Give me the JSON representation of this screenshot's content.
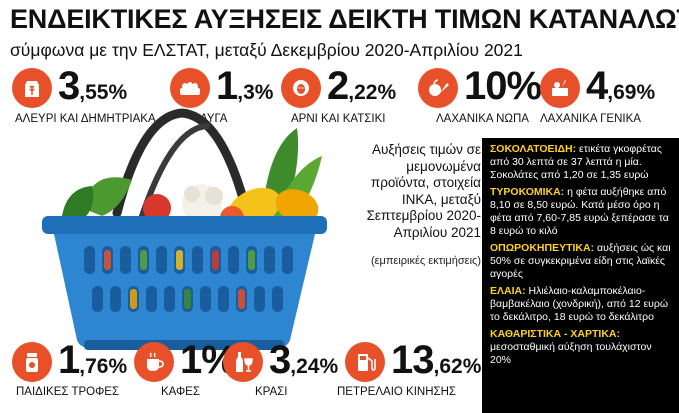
{
  "title": "ΕΝΔΕΙΚΤΙΚΕΣ ΑΥΞΗΣΕΙΣ ΔΕΙΚΤΗ ΤΙΜΩΝ ΚΑΤΑΝΑΛΩΤΗ",
  "subtitle": "σύμφωνα με την ΕΛΣΤΑΤ, μεταξύ Δεκεμβρίου 2020-Απριλίου 2021",
  "accent_color": "#e8502a",
  "panel_head_color": "#ffd21a",
  "stats": [
    {
      "icon": "wheat-bag-icon",
      "int": "3",
      "dec": ",55%",
      "label": "ΑΛΕΥΡΙ ΚΑΙ ΔΗΜΗΤΡΙΑΚΑ"
    },
    {
      "icon": "egg-carton-icon",
      "int": "1",
      "dec": ",3%",
      "label": "ΑΥΓΑ"
    },
    {
      "icon": "sheep-icon",
      "int": "2",
      "dec": ",22%",
      "label": "ΑΡΝΙ ΚΑΙ ΚΑΤΣΙΚΙ"
    },
    {
      "icon": "vegetables-icon",
      "int": "10%",
      "dec": "",
      "label": "ΛΑΧΑΝΙΚΑ ΝΩΠΑ"
    },
    {
      "icon": "vegetable-box-icon",
      "int": "4",
      "dec": ",69%",
      "label": "ΛΑΧΑΝΙΚΑ ΓΕΝΙΚΑ"
    },
    {
      "icon": "baby-food-icon",
      "int": "1",
      "dec": ",76%",
      "label": "ΠΑΙΔΙΚΕΣ ΤΡΟΦΕΣ"
    },
    {
      "icon": "coffee-cup-icon",
      "int": "1%",
      "dec": "",
      "label": "ΚΑΦΕΣ"
    },
    {
      "icon": "wine-icon",
      "int": "3",
      "dec": ",24%",
      "label": "ΚΡΑΣΙ"
    },
    {
      "icon": "fuel-pump-icon",
      "int": "13",
      "dec": ",62%",
      "label": "ΠΕΤΡΕΛΑΙΟ ΚΙΝΗΣΗΣ"
    }
  ],
  "note": {
    "lines": [
      "Αυξήσεις τιμών σε",
      "μεμονωμένα",
      "προϊόντα, στοιχεία",
      "INKA, μεταξύ",
      "Σεπτεμβρίου 2020-",
      "Απριλίου 2021"
    ],
    "sub": "(εμπειρικές εκτιμήσεις)"
  },
  "panel": [
    {
      "head": "ΣΟΚΟΛΑΤΟΕΙΔΗ:",
      "text": " ετικέτα γκοφρέτας από 30 λεπτά σε 37 λεπτά η μία. Σοκολάτες από 1,20 σε 1,35 ευρώ"
    },
    {
      "head": "ΤΥΡΟΚΟΜΙΚΑ:",
      "text": " η φέτα αυξήθηκε από 8,10 σε 8,50 ευρώ. Κατά μέσο όρο η φέτα από 7,60-7,85 ευρώ ξεπέρασε τα 8 ευρώ το κιλό"
    },
    {
      "head": "ΟΠΩΡΟΚΗΠΕΥΤΙΚΑ:",
      "text": " αυξήσεις ώς και 50% σε συγκεκριμένα είδη στις λαϊκές αγορές"
    },
    {
      "head": "ΕΛΑΙΑ:",
      "text": " Ηλιέλαιο-καλαμποκέλαιο-βαμβακέλαιο (χονδρική), από 12 ευρώ το δεκάλιτρο, 18 ευρώ το δεκάλιτρο"
    },
    {
      "head": "ΚΑΘΑΡΙΣΤΙΚΑ - ΧΑΡΤΙΚΑ:",
      "text": " μεσοσταθμική αύξηση τουλάχιστον 20%"
    }
  ]
}
